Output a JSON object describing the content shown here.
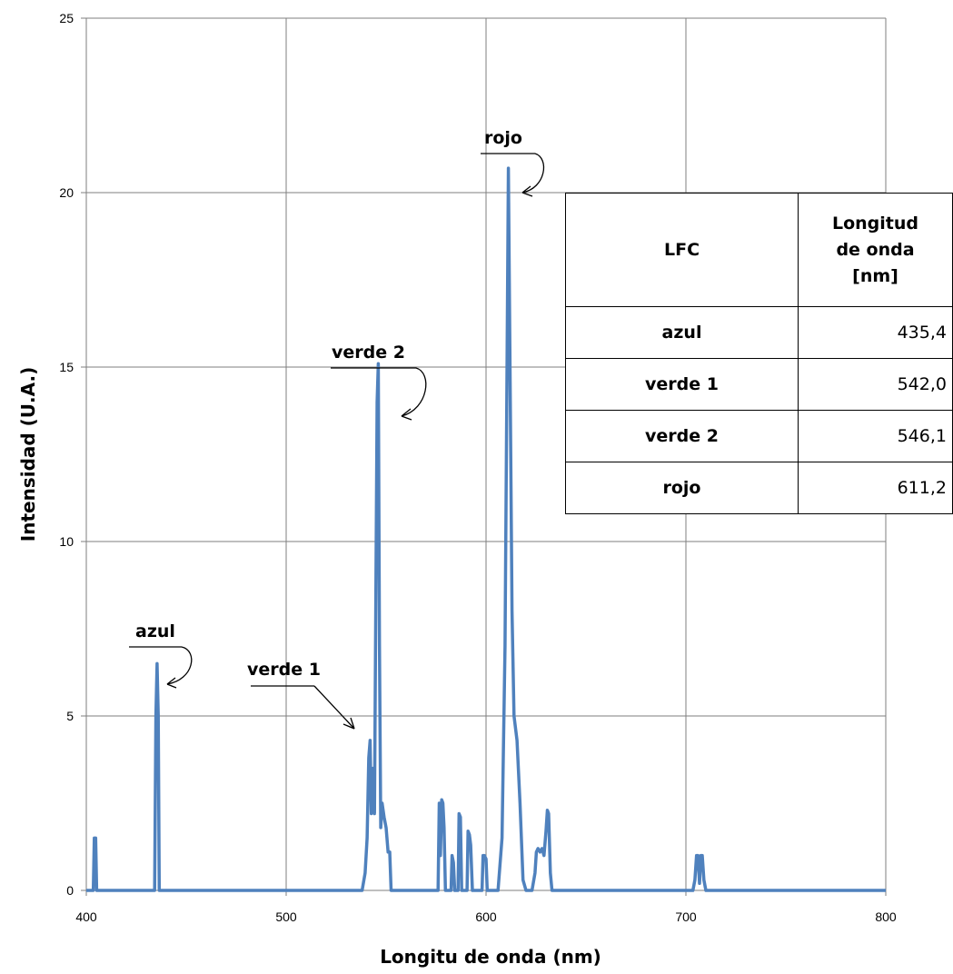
{
  "chart_data": {
    "type": "line",
    "xlabel": "Longitu de onda (nm)",
    "ylabel": "Intensidad (U.A.)",
    "xlim": [
      400,
      800
    ],
    "ylim": [
      0,
      25
    ],
    "xticks": [
      400,
      500,
      600,
      700,
      800
    ],
    "yticks": [
      0,
      5,
      10,
      15,
      20,
      25
    ],
    "grid": true,
    "color": "#4f81bd",
    "series": [
      {
        "x": [
          400,
          403.5,
          404,
          404.7,
          405.2,
          406,
          434.2,
          434.8,
          435.4,
          436,
          436.5,
          437.5,
          538,
          539.5,
          540.5,
          541.3,
          542,
          542.6,
          543.3,
          544.2,
          544.8,
          545.5,
          546.1,
          546.7,
          547.3,
          548,
          549,
          550,
          551,
          551.8,
          552.5,
          576,
          576.6,
          577.2,
          577.8,
          578.4,
          579,
          579.7,
          580.3,
          582.5,
          583,
          583.7,
          584.3,
          586,
          586.5,
          587.2,
          587.8,
          590.5,
          591,
          591.7,
          592.3,
          593.2,
          598,
          598.5,
          599.2,
          600,
          600.6,
          601.2,
          606,
          608,
          609.5,
          610.5,
          611.2,
          612,
          613,
          614,
          615.5,
          617,
          618.5,
          620,
          623,
          624.5,
          625.2,
          626,
          627,
          628,
          629,
          630,
          630.7,
          631.3,
          632.2,
          633,
          703.5,
          704.5,
          705.3,
          706,
          706.8,
          707.5,
          708.2,
          709,
          710,
          800
        ],
        "y": [
          0,
          0,
          1.5,
          1.5,
          0,
          0,
          0,
          5,
          6.5,
          5,
          0,
          0,
          0,
          0.5,
          1.5,
          3.8,
          4.3,
          2.2,
          3.5,
          2.2,
          8,
          14,
          15.1,
          7,
          1.8,
          2.5,
          2.1,
          1.8,
          1.1,
          1.1,
          0,
          0,
          2.5,
          1,
          2.6,
          2.5,
          1.8,
          0,
          0,
          0,
          1,
          0.8,
          0,
          0,
          2.2,
          2.1,
          0,
          0,
          1.7,
          1.6,
          1.3,
          0,
          0,
          1,
          1,
          0.9,
          0,
          0,
          0,
          1.5,
          7,
          15,
          20.7,
          15,
          8,
          5,
          4.3,
          2.5,
          0.3,
          0,
          0,
          0.5,
          1.1,
          1.2,
          1.1,
          1.2,
          1,
          1.7,
          2.3,
          2.2,
          0.5,
          0,
          0,
          0.3,
          1,
          1,
          0.2,
          1,
          1,
          0.3,
          0,
          0
        ]
      }
    ],
    "annotations": [
      {
        "text": "azul",
        "x": 435.4,
        "y": 6.5
      },
      {
        "text": "verde 1",
        "x": 542.0,
        "y": 4.3
      },
      {
        "text": "verde 2",
        "x": 546.1,
        "y": 15.1
      },
      {
        "text": "rojo",
        "x": 611.2,
        "y": 20.7
      }
    ]
  },
  "table": {
    "headers": [
      "LFC",
      "Longitud de onda [nm]"
    ],
    "header_lines": [
      "Longitud",
      "de onda",
      "[nm]"
    ],
    "rows": [
      {
        "name": "azul",
        "value": "435,4"
      },
      {
        "name": "verde 1",
        "value": "542,0"
      },
      {
        "name": "verde 2",
        "value": "546,1"
      },
      {
        "name": "rojo",
        "value": "611,2"
      }
    ]
  }
}
